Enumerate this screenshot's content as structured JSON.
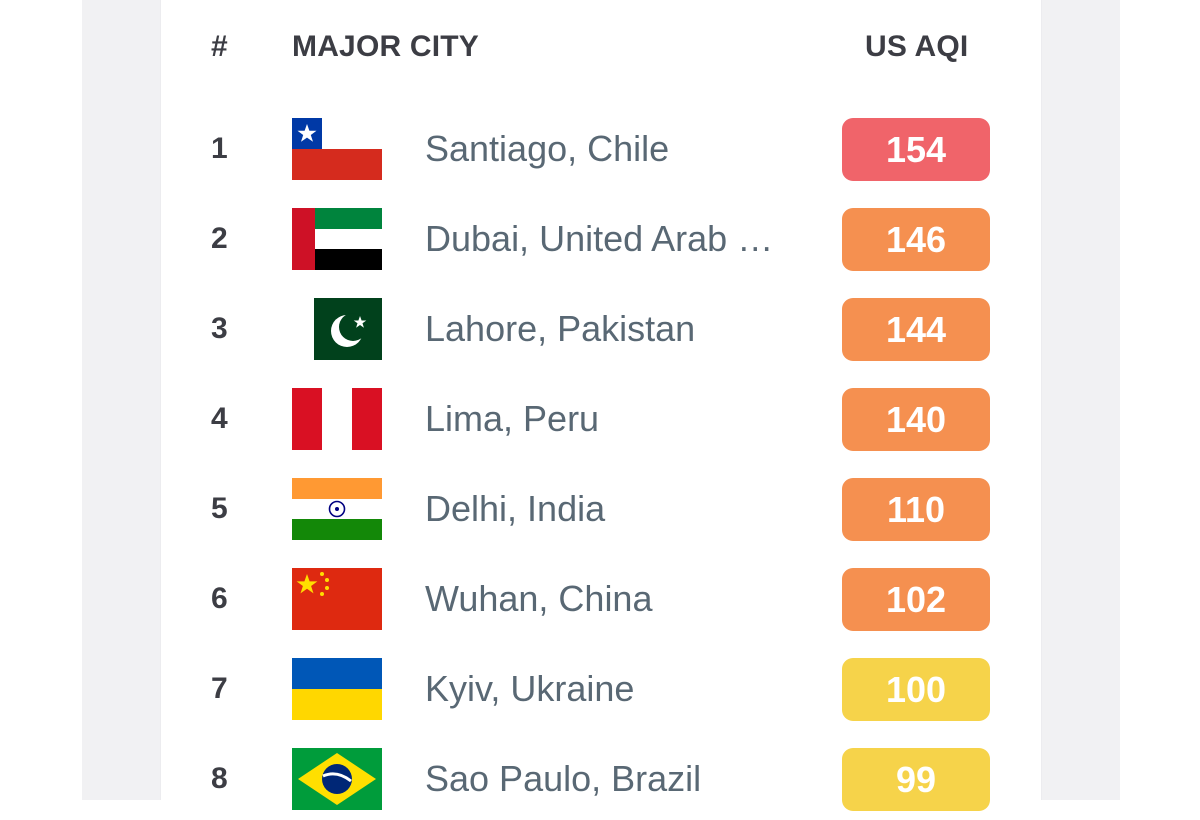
{
  "header": {
    "rank_label": "#",
    "city_label": "MAJOR CITY",
    "aqi_label": "US AQI"
  },
  "colors": {
    "unhealthy": "#f0646a",
    "sensitive": "#f59050",
    "moderate": "#f6d34a",
    "city_text": "#596874",
    "header_text": "#3c3d44"
  },
  "rows": [
    {
      "rank": "1",
      "city": "Santiago, Chile",
      "aqi": "154",
      "flag_icon": "chile-flag-icon",
      "level": "unhealthy"
    },
    {
      "rank": "2",
      "city": "Dubai, United Arab Emirates",
      "aqi": "146",
      "flag_icon": "uae-flag-icon",
      "level": "sensitive"
    },
    {
      "rank": "3",
      "city": "Lahore, Pakistan",
      "aqi": "144",
      "flag_icon": "pakistan-flag-icon",
      "level": "sensitive"
    },
    {
      "rank": "4",
      "city": "Lima, Peru",
      "aqi": "140",
      "flag_icon": "peru-flag-icon",
      "level": "sensitive"
    },
    {
      "rank": "5",
      "city": "Delhi, India",
      "aqi": "110",
      "flag_icon": "india-flag-icon",
      "level": "sensitive"
    },
    {
      "rank": "6",
      "city": "Wuhan, China",
      "aqi": "102",
      "flag_icon": "china-flag-icon",
      "level": "sensitive"
    },
    {
      "rank": "7",
      "city": "Kyiv, Ukraine",
      "aqi": "100",
      "flag_icon": "ukraine-flag-icon",
      "level": "moderate"
    },
    {
      "rank": "8",
      "city": "Sao Paulo, Brazil",
      "aqi": "99",
      "flag_icon": "brazil-flag-icon",
      "level": "moderate"
    }
  ]
}
